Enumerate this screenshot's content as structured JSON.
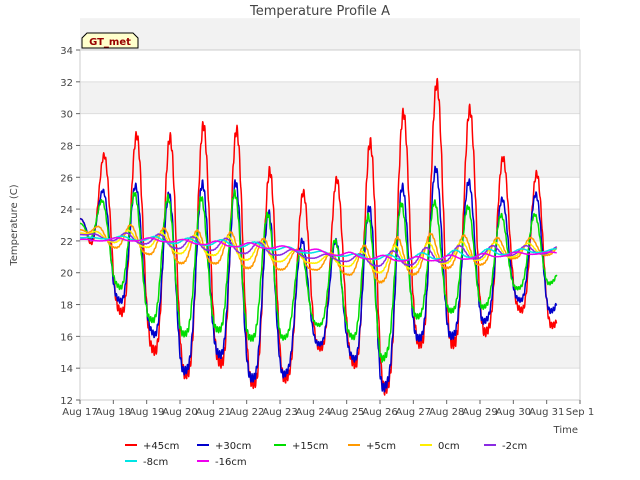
{
  "chart_data": {
    "type": "line",
    "title": "Temperature Profile A",
    "xlabel": "Time",
    "ylabel": "Temperature (C)",
    "ylim": [
      12,
      34
    ],
    "yticks": [
      12,
      14,
      16,
      18,
      20,
      22,
      24,
      26,
      28,
      30,
      32,
      34
    ],
    "xlim": [
      17,
      32
    ],
    "xticks": [
      17,
      18,
      19,
      20,
      21,
      22,
      23,
      24,
      25,
      26,
      27,
      28,
      29,
      30,
      31,
      32
    ],
    "xtick_labels": [
      "Aug 17",
      "Aug 18",
      "Aug 19",
      "Aug 20",
      "Aug 21",
      "Aug 22",
      "Aug 23",
      "Aug 24",
      "Aug 25",
      "Aug 26",
      "Aug 27",
      "Aug 28",
      "Aug 29",
      "Aug 30",
      "Aug 31",
      "Sep 1"
    ],
    "x_unit": "day of August (Sep 1 = 32)",
    "grid": "horizontal bands",
    "legend_position": "bottom",
    "annotation": "GT_met",
    "days": [
      17,
      18,
      19,
      20,
      21,
      22,
      23,
      24,
      25,
      26,
      27,
      28,
      29,
      30,
      31
    ],
    "series": [
      {
        "name": "+45cm",
        "color": "#ff0000",
        "width": 1.5,
        "phase": 0.0,
        "min": [
          23.4,
          18.1,
          15.6,
          13.4,
          14.7,
          13.1,
          12.9,
          15.4,
          14.9,
          12.1,
          15.6,
          15.5,
          15.9,
          18.0,
          16.5,
          17.5
        ],
        "max": [
          23.4,
          29.0,
          28.5,
          28.5,
          29.6,
          28.7,
          25.4,
          24.9,
          26.3,
          29.0,
          30.5,
          32.5,
          29.3,
          26.3,
          26.2,
          21.5
        ]
      },
      {
        "name": "+30cm",
        "color": "#0000cc",
        "width": 1.5,
        "phase": 0.03,
        "min": [
          23.4,
          18.6,
          16.8,
          13.6,
          15.2,
          13.4,
          13.3,
          15.6,
          15.2,
          12.3,
          15.9,
          15.9,
          16.7,
          18.5,
          17.4,
          18.8
        ],
        "max": [
          23.4,
          26.0,
          25.2,
          24.8,
          26.0,
          25.5,
          22.9,
          21.6,
          22.2,
          25.0,
          25.6,
          27.0,
          25.1,
          24.4,
          25.2,
          21.3
        ]
      },
      {
        "name": "+15cm",
        "color": "#00dd00",
        "width": 1.5,
        "phase": 0.06,
        "min": [
          23.1,
          19.5,
          17.2,
          16.1,
          16.5,
          15.9,
          15.8,
          16.8,
          16.3,
          14.3,
          17.2,
          17.6,
          17.7,
          19.0,
          19.2,
          20.5
        ],
        "max": [
          23.1,
          25.3,
          24.8,
          24.7,
          24.7,
          25.2,
          22.8,
          20.6,
          22.8,
          24.0,
          24.5,
          24.4,
          24.0,
          23.4,
          23.8,
          21.8
        ]
      },
      {
        "name": "+5cm",
        "color": "#ff9900",
        "width": 1.5,
        "phase": 0.18,
        "min": [
          22.7,
          21.6,
          21.2,
          20.6,
          20.6,
          20.3,
          20.2,
          20.2,
          19.9,
          19.4,
          19.9,
          20.3,
          20.5,
          20.9,
          21.1,
          21.4
        ],
        "max": [
          22.7,
          23.1,
          22.9,
          22.7,
          22.6,
          22.5,
          21.8,
          21.1,
          21.4,
          22.0,
          22.4,
          22.5,
          22.2,
          22.2,
          22.2,
          21.8
        ]
      },
      {
        "name": "0cm",
        "color": "#ffee00",
        "width": 1.5,
        "phase": 0.25,
        "min": [
          22.5,
          21.9,
          21.6,
          21.2,
          21.1,
          20.8,
          20.7,
          20.6,
          20.4,
          20.0,
          20.3,
          20.6,
          20.8,
          21.0,
          21.2,
          21.4
        ],
        "max": [
          22.5,
          22.7,
          22.6,
          22.4,
          22.3,
          22.2,
          21.6,
          21.1,
          21.1,
          21.6,
          21.8,
          22.0,
          21.9,
          21.9,
          21.8,
          21.7
        ]
      },
      {
        "name": "-2cm",
        "color": "#8a2be2",
        "width": 1.5,
        "phase": 0.32,
        "min": [
          22.4,
          22.0,
          21.8,
          21.5,
          21.4,
          21.2,
          21.1,
          20.9,
          20.7,
          20.4,
          20.5,
          20.7,
          20.9,
          21.1,
          21.2,
          21.4
        ],
        "max": [
          22.4,
          22.5,
          22.5,
          22.3,
          22.2,
          22.1,
          21.6,
          21.2,
          21.1,
          21.3,
          21.5,
          21.7,
          21.7,
          21.7,
          21.7,
          21.6
        ]
      },
      {
        "name": "-8cm",
        "color": "#00e5e5",
        "width": 1.5,
        "phase": 0.45,
        "min": [
          22.2,
          22.1,
          22.0,
          21.8,
          21.7,
          21.6,
          21.4,
          21.2,
          21.0,
          20.8,
          20.8,
          20.9,
          21.0,
          21.2,
          21.3,
          21.4
        ],
        "max": [
          22.2,
          22.3,
          22.3,
          22.2,
          22.1,
          22.0,
          21.7,
          21.4,
          21.2,
          21.1,
          21.2,
          21.4,
          21.5,
          21.5,
          21.5,
          21.5
        ]
      },
      {
        "name": "-16cm",
        "color": "#ee00ee",
        "width": 1.5,
        "phase": 0.6,
        "min": [
          22.0,
          22.0,
          22.0,
          21.9,
          21.7,
          21.6,
          21.5,
          21.3,
          21.0,
          20.8,
          20.7,
          20.8,
          20.9,
          21.1,
          21.2,
          21.2
        ],
        "max": [
          22.1,
          22.2,
          22.2,
          22.1,
          22.0,
          21.9,
          21.7,
          21.5,
          21.3,
          21.1,
          21.0,
          21.1,
          21.2,
          21.3,
          21.3,
          21.3
        ]
      }
    ]
  }
}
